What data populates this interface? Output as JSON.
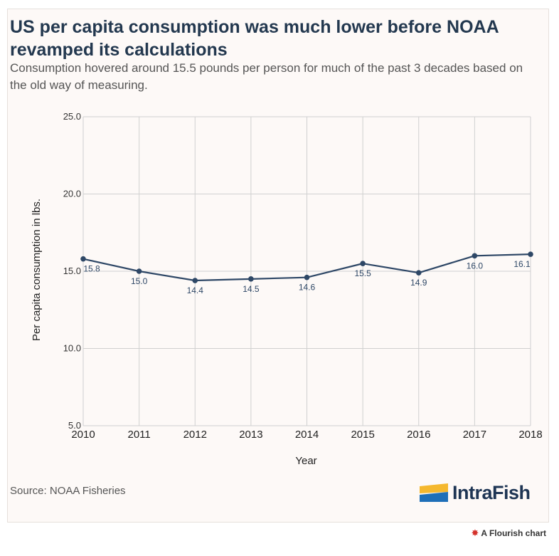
{
  "title": "US per capita consumption was much lower before NOAA revamped its calculations",
  "subtitle": "Consumption hovered around 15.5 pounds per person for much of the past 3 decades based on the old way of measuring.",
  "source": "Source: NOAA Fisheries",
  "logo": {
    "text": "IntraFish",
    "icon": "intrafish-logo-icon"
  },
  "credit": {
    "text": "A Flourish chart",
    "icon": "flourish-icon"
  },
  "colors": {
    "line": "#2e4766",
    "title": "#23384f",
    "grid": "#d0d0d0",
    "logo_yellow": "#f5b82e",
    "logo_blue": "#1e6fb8"
  },
  "chart_data": {
    "type": "line",
    "xlabel": "Year",
    "ylabel": "Per capita consumption in lbs.",
    "x": [
      "2010",
      "2011",
      "2012",
      "2013",
      "2014",
      "2015",
      "2016",
      "2017",
      "2018"
    ],
    "y_ticks": [
      "5.0",
      "10.0",
      "15.0",
      "20.0",
      "25.0"
    ],
    "ylim": [
      5,
      25
    ],
    "grid": true,
    "series": [
      {
        "values": [
          15.8,
          15.0,
          14.4,
          14.5,
          14.6,
          15.5,
          14.9,
          16.0,
          16.1
        ],
        "labels": [
          "15.8",
          "15.0",
          "14.4",
          "14.5",
          "14.6",
          "15.5",
          "14.9",
          "16.0",
          "16.1"
        ]
      }
    ]
  }
}
